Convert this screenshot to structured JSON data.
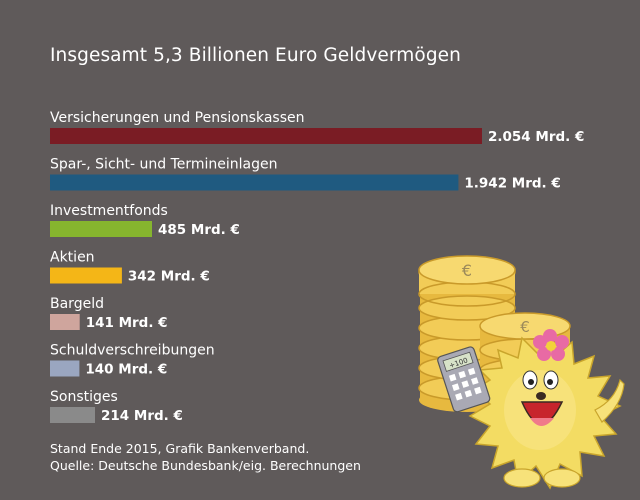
{
  "chart_data": {
    "type": "bar",
    "orientation": "horizontal",
    "title": "Insgesamt 5,3 Billionen Euro Geldvermögen",
    "categories": [
      "Versicherungen und Pensionskassen",
      "Spar-, Sicht- und Termineinlagen",
      "Investmentfonds",
      "Aktien",
      "Bargeld",
      "Schuldverschreibungen",
      "Sonstiges"
    ],
    "values": [
      2054,
      1942,
      485,
      342,
      141,
      140,
      214
    ],
    "value_labels": [
      "2.054 Mrd. €",
      "1.942 Mrd. €",
      "485 Mrd. €",
      "342 Mrd. €",
      "141 Mrd. €",
      "140 Mrd. €",
      "214 Mrd. €"
    ],
    "unit": "Mrd. €",
    "colors": [
      "#7a1c24",
      "#1f5a80",
      "#86b52e",
      "#f4b617",
      "#cfa59d",
      "#9aa6c0",
      "#8a8a8a"
    ],
    "xlim": [
      0,
      2054
    ],
    "grid": false,
    "legend": "none"
  },
  "footer": {
    "line1": "Stand Ende 2015, Grafik Bankenverband.",
    "line2": "Quelle: Deutsche Bundesbank/eig. Berechnungen"
  },
  "mascot": {
    "name": "hedgehog-mascot",
    "coin_color": "#f2cc57",
    "fur_color": "#f3dc63",
    "flower_color": "#e86aa4",
    "coin_symbol": "€",
    "calculator_display": "+100"
  }
}
